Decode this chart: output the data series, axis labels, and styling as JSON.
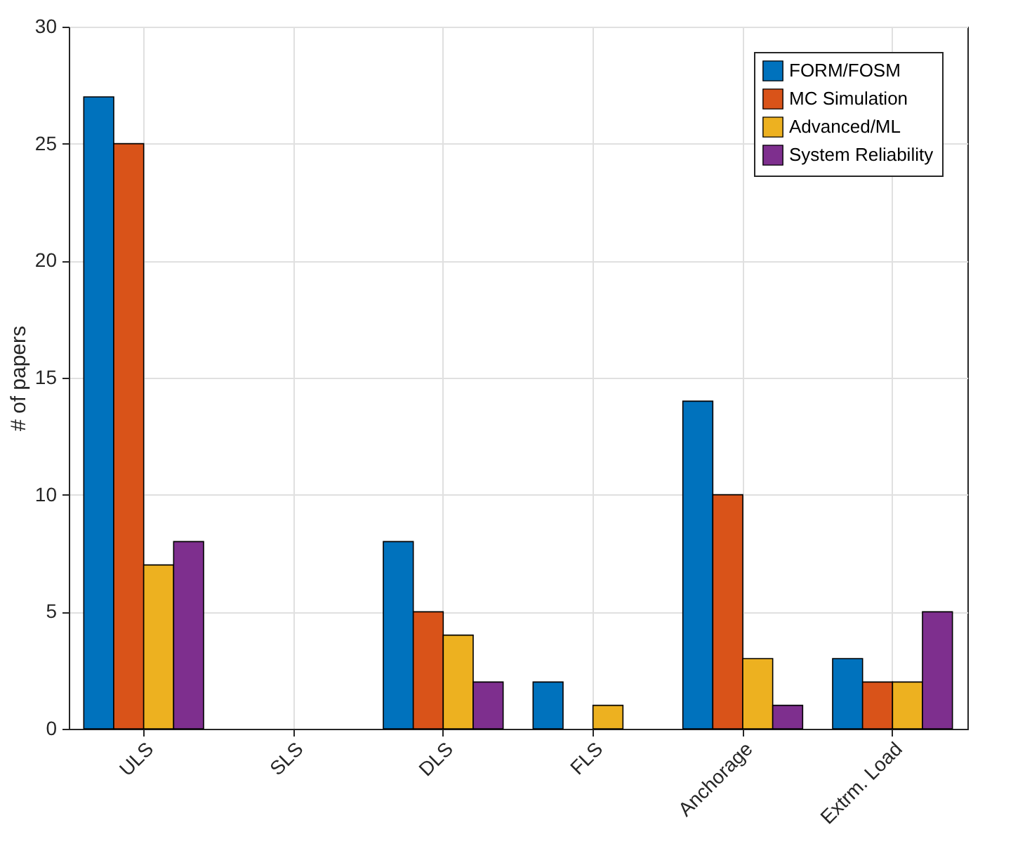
{
  "chart_data": {
    "type": "bar",
    "ylabel": "# of papers",
    "categories": [
      "ULS",
      "SLS",
      "DLS",
      "FLS",
      "Anchorage",
      "Extrm. Load"
    ],
    "series": [
      {
        "name": "FORM/FOSM",
        "color": "#0072bd",
        "values": [
          27,
          0,
          8,
          2,
          14,
          3
        ]
      },
      {
        "name": "MC Simulation",
        "color": "#d95319",
        "values": [
          25,
          0,
          5,
          0,
          10,
          2
        ]
      },
      {
        "name": "Advanced/ML",
        "color": "#edb120",
        "values": [
          7,
          0,
          4,
          1,
          3,
          2
        ]
      },
      {
        "name": "System Reliability",
        "color": "#7e2f8e",
        "values": [
          8,
          0,
          2,
          0,
          1,
          5
        ]
      }
    ],
    "ylim": [
      0,
      30
    ],
    "yticks": [
      0,
      5,
      10,
      15,
      20,
      25,
      30
    ],
    "grid": true,
    "legend": "top right"
  }
}
